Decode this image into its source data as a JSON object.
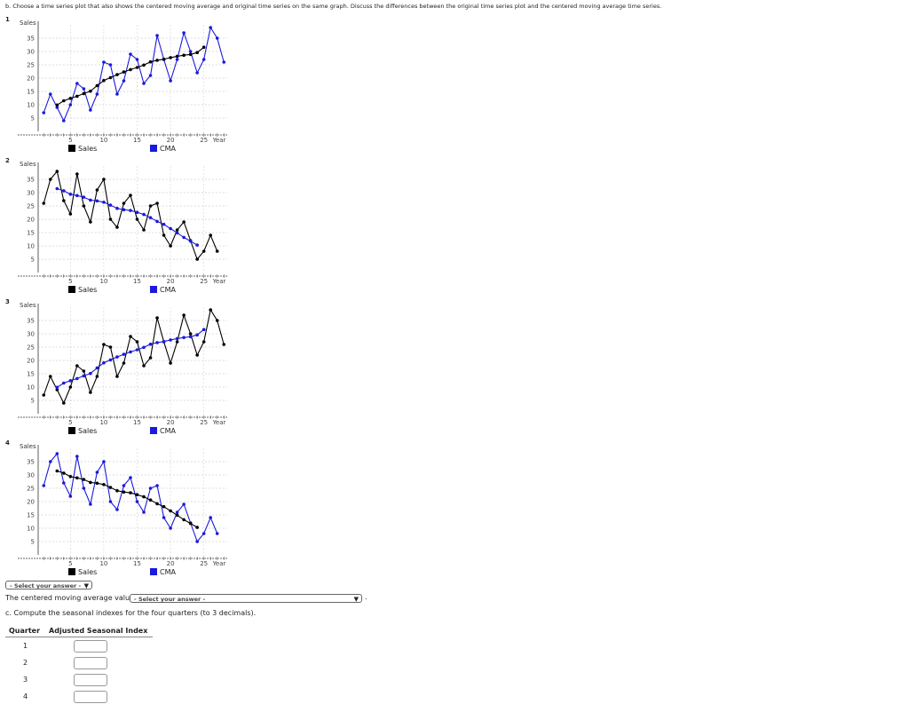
{
  "part_b_prompt": "b. Choose a time series plot that also shows the centered moving average and original time series on the same graph. Discuss the differences between the original time series plot and the centered moving average time series.",
  "options": [
    {
      "number": "1",
      "y_label": "Sales",
      "x_label": "Year",
      "legend_sales": "Sales",
      "legend_cma": "CMA",
      "sales_color": "#1a1adc",
      "cma_color": "#000000",
      "trend": "up"
    },
    {
      "number": "2",
      "y_label": "Sales",
      "x_label": "Year",
      "legend_sales": "Sales",
      "legend_cma": "CMA",
      "sales_color": "#000000",
      "cma_color": "#1a1adc",
      "trend": "down"
    },
    {
      "number": "3",
      "y_label": "Sales",
      "x_label": "Year",
      "legend_sales": "Sales",
      "legend_cma": "CMA",
      "sales_color": "#000000",
      "cma_color": "#1a1adc",
      "trend": "up"
    },
    {
      "number": "4",
      "y_label": "Sales",
      "x_label": "Year",
      "legend_sales": "Sales",
      "legend_cma": "CMA",
      "sales_color": "#1a1adc",
      "cma_color": "#000000",
      "trend": "down"
    }
  ],
  "y_ticks": [
    "35",
    "30",
    "25",
    "20",
    "15",
    "10",
    "5"
  ],
  "x_ticks": [
    "5",
    "10",
    "15",
    "20",
    "25"
  ],
  "legend_colors": {
    "sales": "#000000",
    "cma": "#1a1adc"
  },
  "select1": {
    "value": "- Select your answer -"
  },
  "cma_sentence": "The centered moving average values",
  "select2": {
    "value": "- Select your answer -"
  },
  "sentence_end": ".",
  "part_c_prompt": "c. Compute the seasonal indexes for the four quarters (to 3 decimals).",
  "table": {
    "headers": [
      "Quarter",
      "Adjusted Seasonal Index"
    ],
    "rows": [
      {
        "quarter": "1",
        "value": ""
      },
      {
        "quarter": "2",
        "value": ""
      },
      {
        "quarter": "3",
        "value": ""
      },
      {
        "quarter": "4",
        "value": ""
      }
    ]
  },
  "chart_data": {
    "type": "line",
    "x": [
      1,
      2,
      3,
      4,
      5,
      6,
      7,
      8,
      9,
      10,
      11,
      12,
      13,
      14,
      15,
      16,
      17,
      18,
      19,
      20,
      21,
      22,
      23,
      24,
      25,
      26,
      27,
      28
    ],
    "series_up": {
      "sales": [
        7,
        14,
        9,
        4,
        10,
        18,
        16,
        8,
        14,
        26,
        25,
        14,
        19,
        29,
        27,
        18,
        21,
        36,
        27,
        19,
        27,
        37,
        30,
        22,
        27,
        39,
        35,
        26
      ],
      "cma": [
        null,
        null,
        9.9,
        11.5,
        12.4,
        13.2,
        14.2,
        15.1,
        17.2,
        19.1,
        20.2,
        21.3,
        22.3,
        23.2,
        24,
        24.9,
        26.1,
        26.7,
        27.1,
        27.7,
        28.2,
        28.6,
        28.9,
        29.6,
        31.6,
        null,
        null,
        null
      ]
    },
    "series_down": {
      "sales": [
        26,
        35,
        38,
        27,
        22,
        37,
        25,
        19,
        31,
        35,
        20,
        17,
        26,
        29,
        20,
        16,
        25,
        26,
        14,
        10,
        16,
        19,
        12,
        5,
        8,
        14,
        8,
        null
      ],
      "cma": [
        null,
        null,
        31.5,
        30.7,
        29.4,
        28.9,
        28.3,
        27.2,
        26.9,
        26.4,
        25.3,
        24.1,
        23.6,
        23.3,
        22.6,
        21.8,
        20.6,
        19.2,
        18.1,
        16.5,
        14.9,
        13.2,
        11.8,
        10.3,
        null,
        null,
        null,
        null
      ]
    },
    "xlim": [
      0,
      28.5
    ],
    "ylim": [
      0,
      40
    ]
  }
}
